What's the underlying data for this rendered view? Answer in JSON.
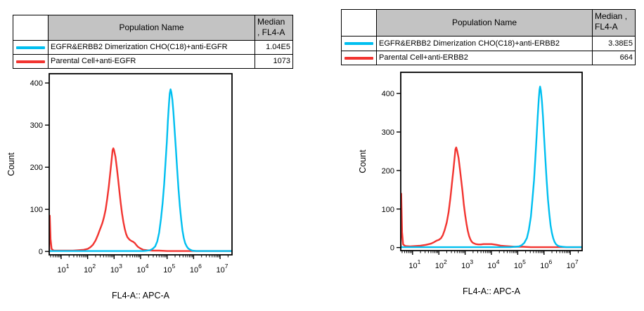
{
  "page": {
    "background": "#ffffff",
    "text_color": "#000000",
    "table_header_fill": "#c3c3c3"
  },
  "chart_data": [
    {
      "type": "line",
      "title": "",
      "xlabel": "FL4-A:: APC-A",
      "ylabel": "Count",
      "xscale": "log10",
      "xlim_log10": [
        0.55,
        7.45
      ],
      "ylim": [
        -8,
        422
      ],
      "yticks": [
        0,
        100,
        200,
        300,
        400
      ],
      "xtick_decades": [
        1,
        2,
        3,
        4,
        5,
        6,
        7
      ],
      "grid": false,
      "legend": {
        "population_header": "Population Name",
        "median_header_lines": [
          ", FL4-A",
          "Median"
        ]
      },
      "series": [
        {
          "name": "EGFR&ERBB2 Dimerization CHO(C18)+anti-EGFR",
          "median": "1.04E5",
          "color": "#00BFF0",
          "points": [
            [
              0.55,
              1
            ],
            [
              1.0,
              1
            ],
            [
              2.0,
              1
            ],
            [
              3.0,
              1
            ],
            [
              3.8,
              1
            ],
            [
              4.1,
              1
            ],
            [
              4.25,
              2
            ],
            [
              4.35,
              3
            ],
            [
              4.45,
              6
            ],
            [
              4.55,
              12
            ],
            [
              4.63,
              24
            ],
            [
              4.7,
              45
            ],
            [
              4.77,
              78
            ],
            [
              4.83,
              115
            ],
            [
              4.89,
              160
            ],
            [
              4.94,
              210
            ],
            [
              4.99,
              260
            ],
            [
              5.03,
              310
            ],
            [
              5.07,
              350
            ],
            [
              5.1,
              375
            ],
            [
              5.13,
              385
            ],
            [
              5.16,
              378
            ],
            [
              5.2,
              360
            ],
            [
              5.24,
              330
            ],
            [
              5.28,
              292
            ],
            [
              5.33,
              245
            ],
            [
              5.38,
              195
            ],
            [
              5.43,
              148
            ],
            [
              5.48,
              108
            ],
            [
              5.53,
              76
            ],
            [
              5.58,
              50
            ],
            [
              5.63,
              32
            ],
            [
              5.68,
              20
            ],
            [
              5.74,
              12
            ],
            [
              5.8,
              7
            ],
            [
              5.88,
              4
            ],
            [
              5.95,
              2
            ],
            [
              6.1,
              1
            ],
            [
              6.4,
              1
            ],
            [
              6.8,
              1
            ],
            [
              7.45,
              1
            ]
          ]
        },
        {
          "name": "Parental Cell+anti-EGFR",
          "median": "1073",
          "color": "#F23430",
          "points": [
            [
              0.55,
              0
            ],
            [
              0.57,
              85
            ],
            [
              0.6,
              30
            ],
            [
              0.64,
              6
            ],
            [
              0.72,
              2
            ],
            [
              0.95,
              2
            ],
            [
              1.2,
              2
            ],
            [
              1.45,
              2
            ],
            [
              1.65,
              3
            ],
            [
              1.85,
              4
            ],
            [
              2.0,
              6
            ],
            [
              2.1,
              10
            ],
            [
              2.2,
              16
            ],
            [
              2.3,
              26
            ],
            [
              2.38,
              38
            ],
            [
              2.44,
              48
            ],
            [
              2.5,
              58
            ],
            [
              2.56,
              68
            ],
            [
              2.62,
              82
            ],
            [
              2.68,
              100
            ],
            [
              2.74,
              125
            ],
            [
              2.8,
              155
            ],
            [
              2.85,
              185
            ],
            [
              2.9,
              215
            ],
            [
              2.94,
              240
            ],
            [
              2.97,
              245
            ],
            [
              3.0,
              240
            ],
            [
              3.05,
              225
            ],
            [
              3.1,
              200
            ],
            [
              3.15,
              172
            ],
            [
              3.2,
              142
            ],
            [
              3.25,
              115
            ],
            [
              3.3,
              90
            ],
            [
              3.35,
              70
            ],
            [
              3.4,
              54
            ],
            [
              3.45,
              42
            ],
            [
              3.5,
              34
            ],
            [
              3.58,
              28
            ],
            [
              3.65,
              25
            ],
            [
              3.72,
              23
            ],
            [
              3.78,
              20
            ],
            [
              3.84,
              15
            ],
            [
              3.9,
              11
            ],
            [
              4.0,
              7
            ],
            [
              4.1,
              4
            ],
            [
              4.25,
              3
            ],
            [
              4.45,
              2
            ],
            [
              4.7,
              2
            ],
            [
              5.0,
              1
            ],
            [
              5.5,
              1
            ],
            [
              6.0,
              1
            ],
            [
              6.5,
              1
            ],
            [
              7.0,
              1
            ],
            [
              7.45,
              1
            ]
          ]
        }
      ]
    },
    {
      "type": "line",
      "title": "",
      "xlabel": "FL4-A:: APC-A",
      "ylabel": "Count",
      "xscale": "log10",
      "xlim_log10": [
        0.55,
        7.45
      ],
      "ylim": [
        -8,
        455
      ],
      "yticks": [
        0,
        100,
        200,
        300,
        400
      ],
      "xtick_decades": [
        1,
        2,
        3,
        4,
        5,
        6,
        7
      ],
      "grid": false,
      "legend": {
        "population_header": "Population Name",
        "median_header_lines": [
          "Median ,",
          "FL4-A"
        ]
      },
      "series": [
        {
          "name": "EGFR&ERBB2 Dimerization CHO(C18)+anti-ERBB2",
          "median": "3.38E5",
          "color": "#00BFF0",
          "points": [
            [
              0.55,
              1
            ],
            [
              1.5,
              1
            ],
            [
              2.5,
              1
            ],
            [
              3.5,
              1
            ],
            [
              4.4,
              1
            ],
            [
              4.7,
              1
            ],
            [
              4.9,
              2
            ],
            [
              5.05,
              3
            ],
            [
              5.15,
              6
            ],
            [
              5.25,
              12
            ],
            [
              5.35,
              25
            ],
            [
              5.42,
              45
            ],
            [
              5.5,
              80
            ],
            [
              5.56,
              125
            ],
            [
              5.62,
              175
            ],
            [
              5.67,
              230
            ],
            [
              5.72,
              290
            ],
            [
              5.76,
              340
            ],
            [
              5.8,
              385
            ],
            [
              5.83,
              410
            ],
            [
              5.85,
              418
            ],
            [
              5.88,
              408
            ],
            [
              5.92,
              380
            ],
            [
              5.96,
              340
            ],
            [
              6.0,
              290
            ],
            [
              6.05,
              230
            ],
            [
              6.1,
              175
            ],
            [
              6.15,
              125
            ],
            [
              6.2,
              88
            ],
            [
              6.25,
              58
            ],
            [
              6.3,
              38
            ],
            [
              6.35,
              24
            ],
            [
              6.4,
              15
            ],
            [
              6.45,
              9
            ],
            [
              6.52,
              5
            ],
            [
              6.6,
              3
            ],
            [
              6.7,
              2
            ],
            [
              6.85,
              1
            ],
            [
              7.1,
              1
            ],
            [
              7.45,
              1
            ]
          ]
        },
        {
          "name": "Parental Cell+anti-ERBB2",
          "median": "664",
          "color": "#F23430",
          "points": [
            [
              0.55,
              0
            ],
            [
              0.57,
              140
            ],
            [
              0.6,
              40
            ],
            [
              0.64,
              8
            ],
            [
              0.72,
              4
            ],
            [
              0.9,
              3
            ],
            [
              1.1,
              4
            ],
            [
              1.3,
              5
            ],
            [
              1.5,
              7
            ],
            [
              1.7,
              10
            ],
            [
              1.82,
              14
            ],
            [
              1.92,
              18
            ],
            [
              2.0,
              20
            ],
            [
              2.08,
              24
            ],
            [
              2.15,
              32
            ],
            [
              2.22,
              45
            ],
            [
              2.3,
              65
            ],
            [
              2.37,
              92
            ],
            [
              2.44,
              130
            ],
            [
              2.5,
              168
            ],
            [
              2.55,
              200
            ],
            [
              2.6,
              235
            ],
            [
              2.63,
              255
            ],
            [
              2.66,
              260
            ],
            [
              2.7,
              250
            ],
            [
              2.75,
              232
            ],
            [
              2.8,
              205
            ],
            [
              2.85,
              175
            ],
            [
              2.9,
              145
            ],
            [
              2.95,
              112
            ],
            [
              3.0,
              85
            ],
            [
              3.05,
              62
            ],
            [
              3.1,
              44
            ],
            [
              3.15,
              30
            ],
            [
              3.2,
              21
            ],
            [
              3.25,
              15
            ],
            [
              3.3,
              12
            ],
            [
              3.4,
              9
            ],
            [
              3.5,
              8
            ],
            [
              3.6,
              8
            ],
            [
              3.7,
              9
            ],
            [
              3.8,
              9
            ],
            [
              3.9,
              9
            ],
            [
              4.0,
              9
            ],
            [
              4.1,
              8
            ],
            [
              4.2,
              7
            ],
            [
              4.35,
              5
            ],
            [
              4.5,
              4
            ],
            [
              4.7,
              3
            ],
            [
              4.9,
              2
            ],
            [
              5.2,
              2
            ],
            [
              5.5,
              1
            ],
            [
              6.0,
              1
            ],
            [
              6.5,
              1
            ],
            [
              7.0,
              1
            ],
            [
              7.45,
              1
            ]
          ]
        }
      ]
    }
  ]
}
